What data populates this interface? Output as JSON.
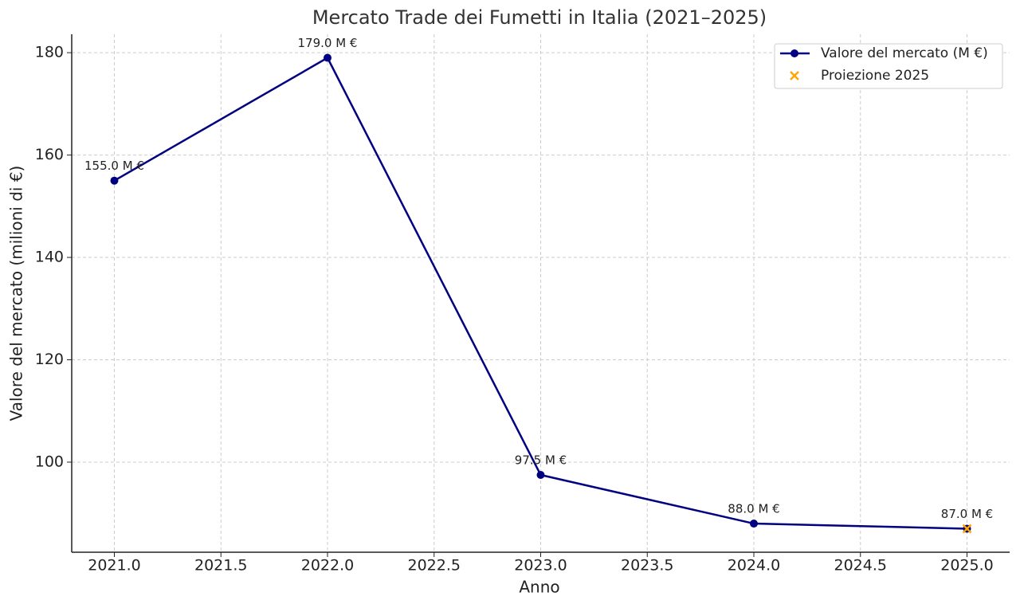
{
  "chart_data": {
    "type": "line",
    "title": "Mercato Trade dei Fumetti in Italia (2021–2025)",
    "x_label": "Anno",
    "y_label": "Valore del mercato (milioni di €)",
    "x": [
      2021,
      2022,
      2023,
      2024,
      2025
    ],
    "series": [
      {
        "name": "Valore del mercato (M €)",
        "color": "#000080",
        "marker": "o",
        "line": true,
        "values": [
          155,
          179,
          97.5,
          88,
          87
        ],
        "value_labels": [
          "155.0 M €",
          "179.0 M €",
          "97.5 M €",
          "88.0 M €",
          "87.0 M €"
        ]
      },
      {
        "name": "Proiezione 2025",
        "color": "#ffa500",
        "marker": "x",
        "line": false,
        "x": [
          2025
        ],
        "values": [
          87
        ]
      }
    ],
    "xlim": [
      2020.8,
      2025.2
    ],
    "xticks": [
      {
        "value": 2021,
        "label": "2021.0"
      },
      {
        "value": 2021.5,
        "label": "2021.5"
      },
      {
        "value": 2022,
        "label": "2022.0"
      },
      {
        "value": 2022.5,
        "label": "2022.5"
      },
      {
        "value": 2023,
        "label": "2023.0"
      },
      {
        "value": 2023.5,
        "label": "2023.5"
      },
      {
        "value": 2024,
        "label": "2024.0"
      },
      {
        "value": 2024.5,
        "label": "2024.5"
      },
      {
        "value": 2025,
        "label": "2025.0"
      }
    ],
    "ylim": [
      82.4,
      183.6
    ],
    "yticks": [
      100,
      120,
      140,
      160,
      180
    ],
    "grid": true,
    "legend": "upper right"
  }
}
